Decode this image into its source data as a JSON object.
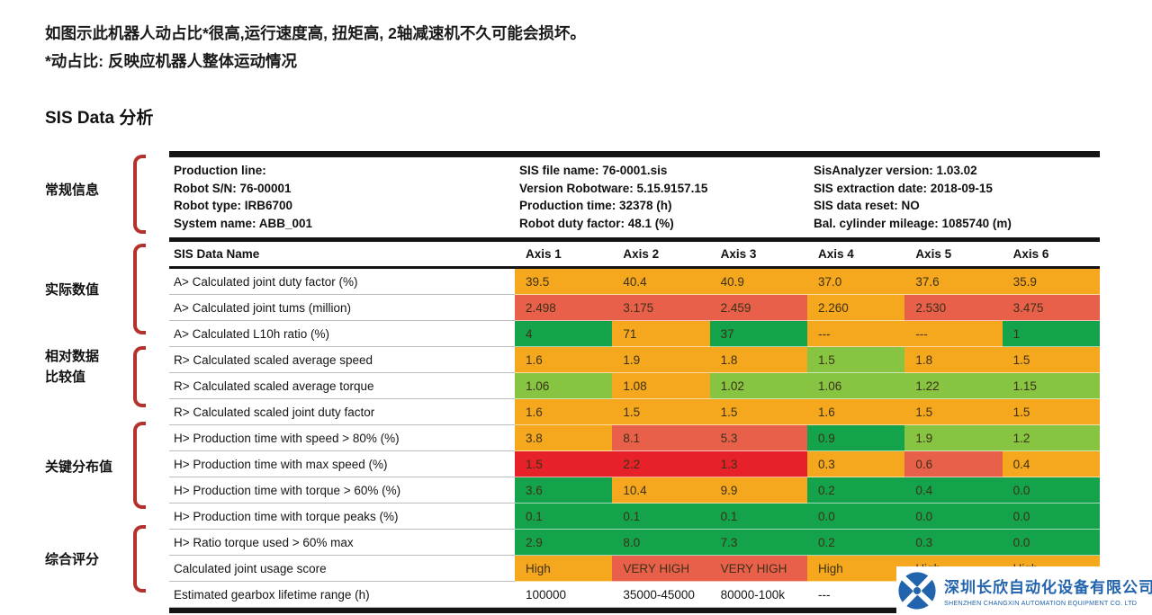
{
  "intro": {
    "line1": "如图示此机器人动占比*很高,运行速度高, 扭矩高, 2轴减速机不久可能会损坏。",
    "line2": "*动占比: 反映应机器人整体运动情况"
  },
  "section_title": "SIS Data 分析",
  "side_sections": [
    {
      "label": "常规信息",
      "label2": ""
    },
    {
      "label": "实际数值",
      "label2": ""
    },
    {
      "label": "相对数据",
      "label2": "比较值"
    },
    {
      "label": "关键分布值",
      "label2": ""
    },
    {
      "label": "综合评分",
      "label2": ""
    }
  ],
  "general_info": {
    "columns": [
      {
        "lines": [
          "Production line:",
          "Robot S/N: 76-00001",
          "Robot type: IRB6700",
          "System name: ABB_001"
        ]
      },
      {
        "lines": [
          "SIS file name: 76-0001.sis",
          "Version Robotware: 5.15.9157.15",
          "Production time: 32378 (h)",
          "Robot duty factor: 48.1 (%)"
        ]
      },
      {
        "lines": [
          "SisAnalyzer version: 1.03.02",
          "SIS extraction date: 2018-09-15",
          "SIS data reset: NO",
          "Bal. cylinder mileage: 1085740 (m)"
        ]
      }
    ]
  },
  "colors": {
    "orange": "#F5A71D",
    "salmon": "#E8604A",
    "crimson": "#E62129",
    "green": "#14A24A",
    "lightgreen": "#86C441",
    "brace_red": "#B5312D",
    "logo_blue": "#2163AC"
  },
  "table": {
    "header": {
      "name": "SIS Data Name",
      "axes": [
        "Axis 1",
        "Axis 2",
        "Axis 3",
        "Axis 4",
        "Axis 5",
        "Axis 6"
      ]
    },
    "rows": [
      {
        "label": "A> Calculated joint duty factor (%)",
        "cells": [
          {
            "text": "39.5",
            "color": "orange"
          },
          {
            "text": "40.4",
            "color": "orange"
          },
          {
            "text": "40.9",
            "color": "orange"
          },
          {
            "text": "37.0",
            "color": "orange"
          },
          {
            "text": "37.6",
            "color": "orange"
          },
          {
            "text": "35.9",
            "color": "orange"
          }
        ]
      },
      {
        "label": "A> Calculated joint tums (million)",
        "cells": [
          {
            "text": "2.498",
            "color": "salmon"
          },
          {
            "text": "3.175",
            "color": "salmon"
          },
          {
            "text": "2.459",
            "color": "salmon"
          },
          {
            "text": "2.260",
            "color": "orange"
          },
          {
            "text": "2.530",
            "color": "salmon"
          },
          {
            "text": "3.475",
            "color": "salmon"
          }
        ]
      },
      {
        "label": "A> Calculated L10h ratio (%)",
        "cells": [
          {
            "text": "4",
            "color": "green"
          },
          {
            "text": "71",
            "color": "orange"
          },
          {
            "text": "37",
            "color": "green"
          },
          {
            "text": "---",
            "color": "orange"
          },
          {
            "text": "---",
            "color": "orange"
          },
          {
            "text": "1",
            "color": "green"
          }
        ]
      },
      {
        "label": "R> Calculated scaled average speed",
        "cells": [
          {
            "text": "1.6",
            "color": "orange"
          },
          {
            "text": "1.9",
            "color": "orange"
          },
          {
            "text": "1.8",
            "color": "orange"
          },
          {
            "text": "1.5",
            "color": "lightgreen"
          },
          {
            "text": "1.8",
            "color": "orange"
          },
          {
            "text": "1.5",
            "color": "orange"
          }
        ]
      },
      {
        "label": "R> Calculated scaled average torque",
        "cells": [
          {
            "text": "1.06",
            "color": "lightgreen"
          },
          {
            "text": "1.08",
            "color": "orange"
          },
          {
            "text": "1.02",
            "color": "lightgreen"
          },
          {
            "text": "1.06",
            "color": "lightgreen"
          },
          {
            "text": "1.22",
            "color": "lightgreen"
          },
          {
            "text": "1.15",
            "color": "lightgreen"
          }
        ]
      },
      {
        "label": "R> Calculated scaled joint duty factor",
        "cells": [
          {
            "text": "1.6",
            "color": "orange"
          },
          {
            "text": "1.5",
            "color": "orange"
          },
          {
            "text": "1.5",
            "color": "orange"
          },
          {
            "text": "1.6",
            "color": "orange"
          },
          {
            "text": "1.5",
            "color": "orange"
          },
          {
            "text": "1.5",
            "color": "orange"
          }
        ]
      },
      {
        "label": "H> Production time with speed > 80% (%)",
        "cells": [
          {
            "text": "3.8",
            "color": "orange"
          },
          {
            "text": "8.1",
            "color": "salmon"
          },
          {
            "text": "5.3",
            "color": "salmon"
          },
          {
            "text": "0.9",
            "color": "green"
          },
          {
            "text": "1.9",
            "color": "lightgreen"
          },
          {
            "text": "1.2",
            "color": "lightgreen"
          }
        ]
      },
      {
        "label": "H> Production time with max speed (%)",
        "cells": [
          {
            "text": "1.5",
            "color": "crimson"
          },
          {
            "text": "2.2",
            "color": "crimson"
          },
          {
            "text": "1.3",
            "color": "crimson"
          },
          {
            "text": "0.3",
            "color": "orange"
          },
          {
            "text": "0.6",
            "color": "salmon"
          },
          {
            "text": "0.4",
            "color": "orange"
          }
        ]
      },
      {
        "label": "H> Production time with torque > 60% (%)",
        "cells": [
          {
            "text": "3.6",
            "color": "green"
          },
          {
            "text": "10.4",
            "color": "orange"
          },
          {
            "text": "9.9",
            "color": "orange"
          },
          {
            "text": "0.2",
            "color": "green"
          },
          {
            "text": "0.4",
            "color": "green"
          },
          {
            "text": "0.0",
            "color": "green"
          }
        ]
      },
      {
        "label": "H> Production time with torque peaks (%)",
        "cells": [
          {
            "text": "0.1",
            "color": "green"
          },
          {
            "text": "0.1",
            "color": "green"
          },
          {
            "text": "0.1",
            "color": "green"
          },
          {
            "text": "0.0",
            "color": "green"
          },
          {
            "text": "0.0",
            "color": "green"
          },
          {
            "text": "0.0",
            "color": "green"
          }
        ]
      },
      {
        "label": "H> Ratio torque used > 60% max",
        "cells": [
          {
            "text": "2.9",
            "color": "green"
          },
          {
            "text": "8.0",
            "color": "green"
          },
          {
            "text": "7.3",
            "color": "green"
          },
          {
            "text": "0.2",
            "color": "green"
          },
          {
            "text": "0.3",
            "color": "green"
          },
          {
            "text": "0.0",
            "color": "green"
          }
        ]
      },
      {
        "label": "Calculated joint usage score",
        "cells": [
          {
            "text": "High",
            "color": "orange"
          },
          {
            "text": "VERY HIGH",
            "color": "salmon"
          },
          {
            "text": "VERY HIGH",
            "color": "salmon"
          },
          {
            "text": "High",
            "color": "orange"
          },
          {
            "text": "High",
            "color": "orange"
          },
          {
            "text": "High",
            "color": "orange"
          }
        ]
      },
      {
        "label": "Estimated gearbox lifetime range (h)",
        "cells": [
          {
            "text": "100000",
            "color": "none"
          },
          {
            "text": "35000-45000",
            "color": "none"
          },
          {
            "text": "80000-100k",
            "color": "none"
          },
          {
            "text": "---",
            "color": "none"
          },
          {
            "text": "",
            "color": "none"
          },
          {
            "text": "",
            "color": "none"
          }
        ]
      }
    ]
  },
  "logo": {
    "company_cn": "深圳长欣自动化设备有限公司",
    "company_en": "SHENZHEN CHANGXIN AUTOMATION EQUIPMENT CO. LTD"
  }
}
